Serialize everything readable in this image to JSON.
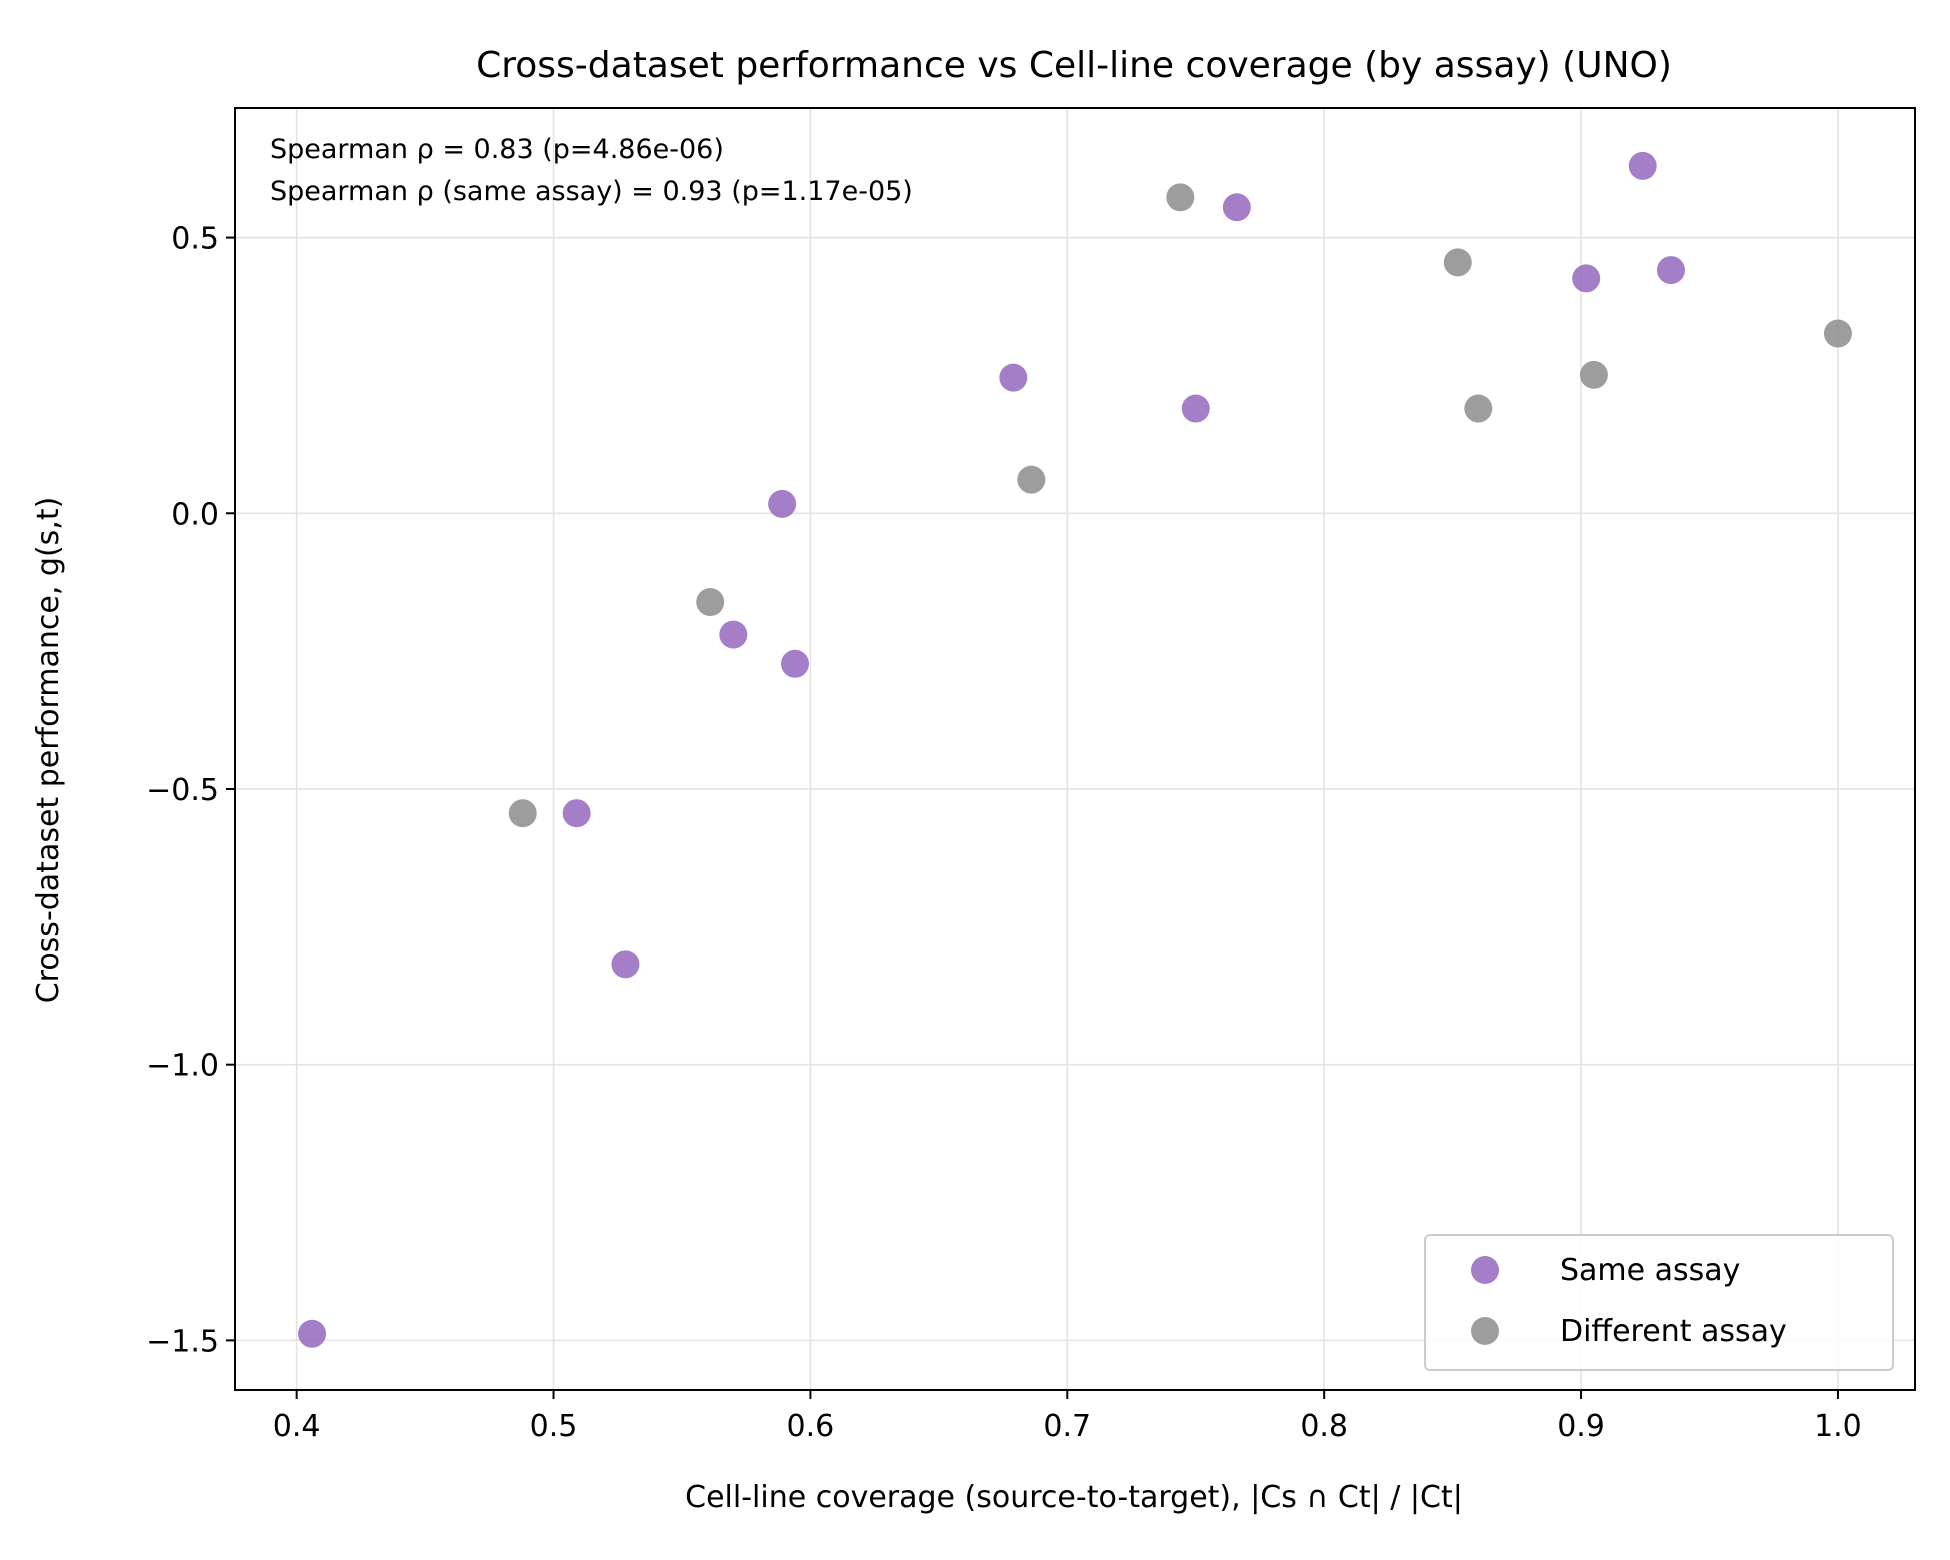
{
  "chart_data": {
    "type": "scatter",
    "title": "Cross-dataset performance vs Cell-line coverage (by assay) (UNO)",
    "xlabel": "Cell-line coverage (source-to-target), |Cs ∩ Ct| / |Ct|",
    "ylabel": "Cross-dataset performance, g(s,t)",
    "xlim": [
      0.376,
      1.03
    ],
    "ylim": [
      -1.59,
      0.735
    ],
    "xticks": [
      0.4,
      0.5,
      0.6,
      0.7,
      0.8,
      0.9,
      1.0
    ],
    "xtick_labels": [
      "0.4",
      "0.5",
      "0.6",
      "0.7",
      "0.8",
      "0.9",
      "1.0"
    ],
    "yticks": [
      -1.5,
      -1.0,
      -0.5,
      0.0,
      0.5
    ],
    "ytick_labels": [
      "−1.5",
      "−1.0",
      "−0.5",
      "0.0",
      "0.5"
    ],
    "grid": true,
    "legend_position": "bottom-right",
    "annotations": [
      "Spearman ρ = 0.83 (p=4.86e-06)",
      "Spearman ρ (same assay) = 0.93 (p=1.17e-05)"
    ],
    "series": [
      {
        "name": "Same assay",
        "color": "#9467bd",
        "points": [
          {
            "x": 0.406,
            "y": -1.488
          },
          {
            "x": 0.509,
            "y": -0.544
          },
          {
            "x": 0.528,
            "y": -0.818
          },
          {
            "x": 0.57,
            "y": -0.22
          },
          {
            "x": 0.589,
            "y": 0.017
          },
          {
            "x": 0.594,
            "y": -0.273
          },
          {
            "x": 0.679,
            "y": 0.246
          },
          {
            "x": 0.75,
            "y": 0.19
          },
          {
            "x": 0.766,
            "y": 0.555
          },
          {
            "x": 0.902,
            "y": 0.426
          },
          {
            "x": 0.924,
            "y": 0.63
          },
          {
            "x": 0.935,
            "y": 0.441
          }
        ]
      },
      {
        "name": "Different assay",
        "color": "#8c8c8c",
        "points": [
          {
            "x": 0.488,
            "y": -0.544
          },
          {
            "x": 0.561,
            "y": -0.161
          },
          {
            "x": 0.686,
            "y": 0.061
          },
          {
            "x": 0.744,
            "y": 0.573
          },
          {
            "x": 0.852,
            "y": 0.455
          },
          {
            "x": 0.86,
            "y": 0.19
          },
          {
            "x": 0.905,
            "y": 0.251
          },
          {
            "x": 1.0,
            "y": 0.326
          }
        ]
      }
    ]
  }
}
